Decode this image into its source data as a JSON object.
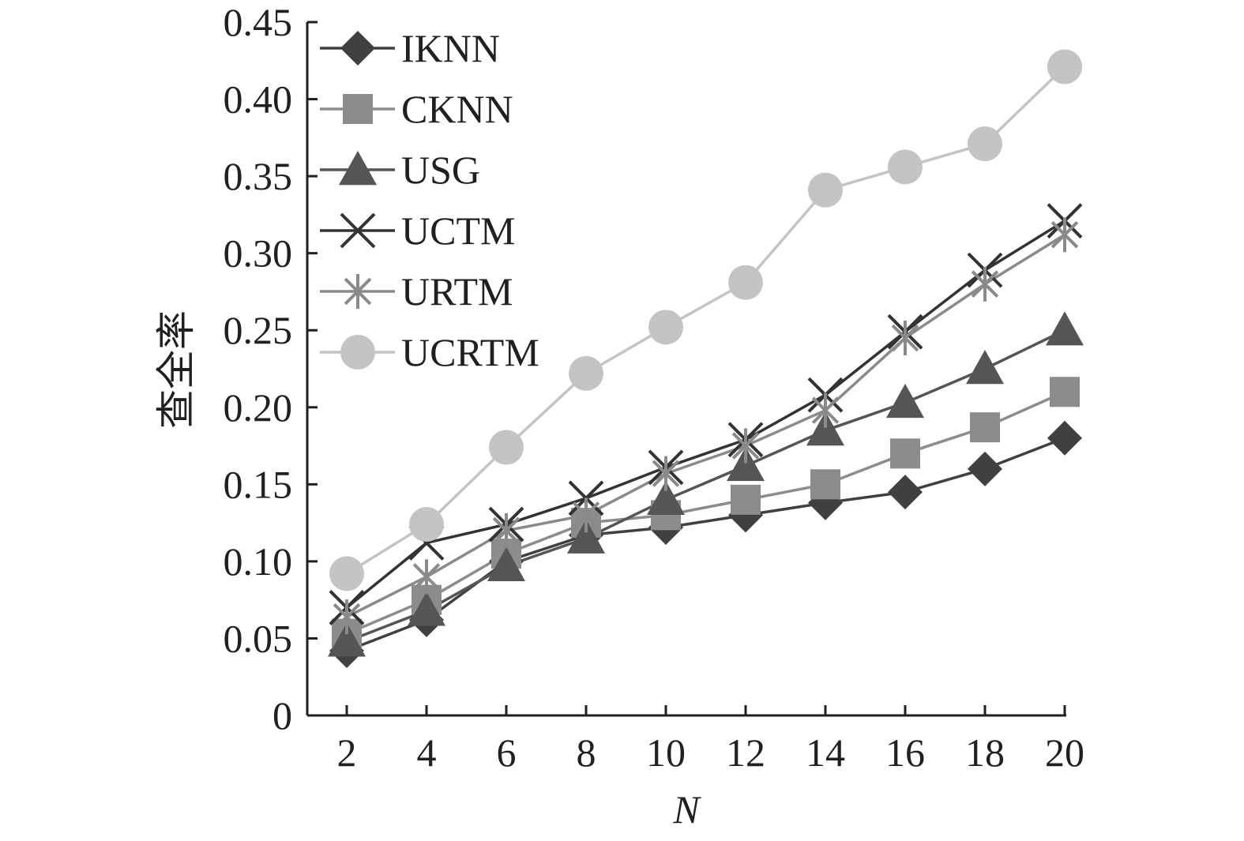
{
  "chart_data": {
    "type": "line",
    "xlabel": "N",
    "ylabel": "查全率",
    "x": [
      2,
      4,
      6,
      8,
      10,
      12,
      14,
      16,
      18,
      20
    ],
    "xticks": [
      "2",
      "4",
      "6",
      "8",
      "10",
      "12",
      "14",
      "16",
      "18",
      "20"
    ],
    "yticks": [
      "0",
      "0.05",
      "0.10",
      "0.15",
      "0.20",
      "0.25",
      "0.30",
      "0.35",
      "0.40",
      "0.45"
    ],
    "xlim": [
      2,
      20
    ],
    "ylim": [
      0,
      0.45
    ],
    "grid": false,
    "legend_position": "top-left",
    "series": [
      {
        "name": "IKNN",
        "marker": "diamond",
        "color": "#404040",
        "values": [
          0.042,
          0.062,
          0.1,
          0.117,
          0.122,
          0.13,
          0.138,
          0.145,
          0.16,
          0.18
        ]
      },
      {
        "name": "CKNN",
        "marker": "square",
        "color": "#8c8c8c",
        "values": [
          0.053,
          0.075,
          0.105,
          0.125,
          0.13,
          0.14,
          0.15,
          0.17,
          0.187,
          0.21
        ]
      },
      {
        "name": "USG",
        "marker": "triangle",
        "color": "#555555",
        "values": [
          0.048,
          0.068,
          0.097,
          0.115,
          0.14,
          0.162,
          0.185,
          0.203,
          0.225,
          0.25
        ]
      },
      {
        "name": "UCTM",
        "marker": "x",
        "color": "#333333",
        "values": [
          0.07,
          0.112,
          0.124,
          0.141,
          0.161,
          0.179,
          0.208,
          0.249,
          0.289,
          0.321
        ]
      },
      {
        "name": "URTM",
        "marker": "asterisk",
        "color": "#8a8a8a",
        "values": [
          0.064,
          0.09,
          0.12,
          0.13,
          0.157,
          0.175,
          0.198,
          0.245,
          0.28,
          0.312
        ]
      },
      {
        "name": "UCRTM",
        "marker": "circle",
        "color": "#c4c4c4",
        "values": [
          0.092,
          0.124,
          0.174,
          0.222,
          0.252,
          0.281,
          0.341,
          0.356,
          0.371,
          0.421
        ]
      }
    ]
  }
}
